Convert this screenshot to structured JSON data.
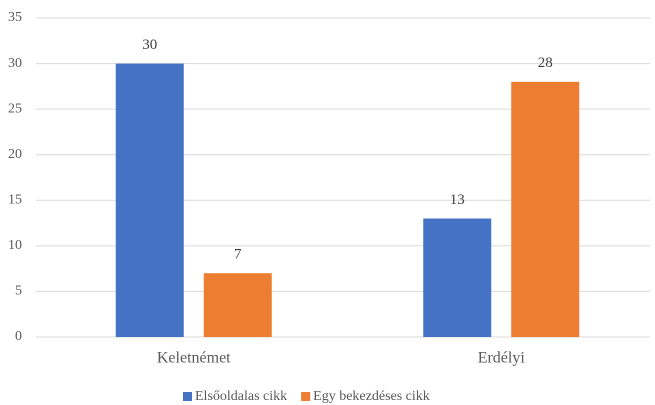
{
  "chart_data": {
    "type": "bar",
    "categories": [
      "Keletnémet",
      "Erdélyi"
    ],
    "series": [
      {
        "name": "Elsőoldalas cikk",
        "color": "#4472c4",
        "values": [
          30,
          13
        ]
      },
      {
        "name": "Egy bekezdéses cikk",
        "color": "#ed7d31",
        "values": [
          7,
          28
        ]
      }
    ],
    "ylim": [
      0,
      35
    ],
    "yticks": [
      0,
      5,
      10,
      15,
      20,
      25,
      30,
      35
    ],
    "grid": true,
    "legend": "bottom"
  }
}
